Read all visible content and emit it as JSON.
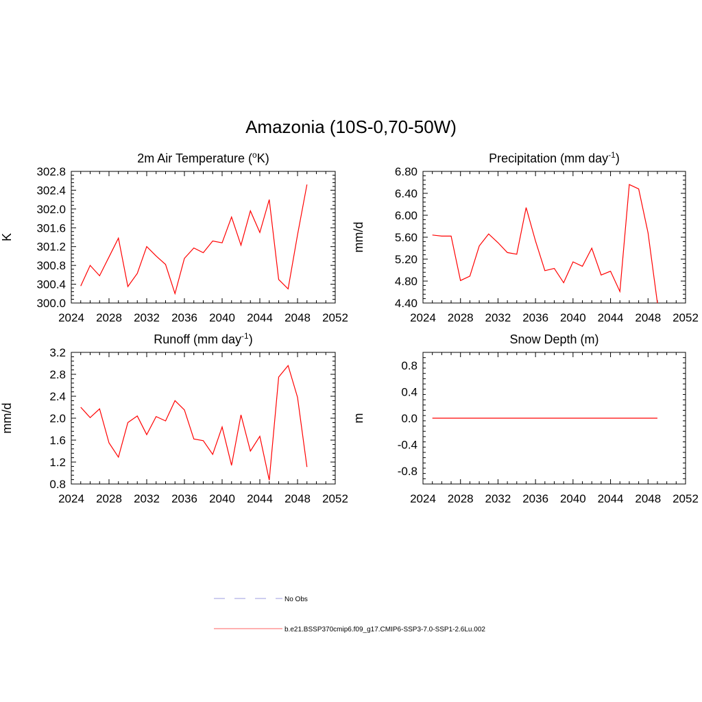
{
  "figure": {
    "title": "Amazonia (10S-0,70-50W)"
  },
  "legend": [
    {
      "label": "No Obs",
      "color": "#b0b0e8",
      "style": "dashed"
    },
    {
      "label": "b.e21.BSSP370cmip6.f09_g17.CMIP6-SSP3-7.0-SSP1-2.6Lu.002",
      "color": "#ff8080",
      "style": "solid"
    }
  ],
  "chart_data": [
    {
      "type": "line",
      "title": "2m Air Temperature (",
      "title_sup": "o",
      "title_after": "K)",
      "ylabel": "K",
      "xlim": [
        2024,
        2052
      ],
      "ylim": [
        300.0,
        302.8
      ],
      "xticks": [
        "2024",
        "2028",
        "2032",
        "2036",
        "2040",
        "2044",
        "2048",
        "2052"
      ],
      "yticks": [
        "300.0",
        "300.4",
        "300.8",
        "301.2",
        "301.6",
        "302.0",
        "302.4",
        "302.8"
      ],
      "line_color": "#ff0000",
      "x": [
        2025,
        2026,
        2027,
        2028,
        2029,
        2030,
        2031,
        2032,
        2033,
        2034,
        2035,
        2036,
        2037,
        2038,
        2039,
        2040,
        2041,
        2042,
        2043,
        2044,
        2045,
        2046,
        2047,
        2048,
        2049
      ],
      "y": [
        300.36,
        300.8,
        300.58,
        300.98,
        301.38,
        300.35,
        300.63,
        301.2,
        301.0,
        300.82,
        300.2,
        300.95,
        301.17,
        301.07,
        301.32,
        301.28,
        301.83,
        301.23,
        301.96,
        301.5,
        302.2,
        300.5,
        300.3,
        301.45,
        302.52
      ]
    },
    {
      "type": "line",
      "title": "Precipitation (mm day",
      "title_sup": "-1",
      "title_after": ")",
      "ylabel": "mm/d",
      "xlim": [
        2024,
        2052
      ],
      "ylim": [
        4.4,
        6.8
      ],
      "xticks": [
        "2024",
        "2028",
        "2032",
        "2036",
        "2040",
        "2044",
        "2048",
        "2052"
      ],
      "yticks": [
        "4.40",
        "4.80",
        "5.20",
        "5.60",
        "6.00",
        "6.40",
        "6.80"
      ],
      "line_color": "#ff0000",
      "x": [
        2025,
        2026,
        2027,
        2028,
        2029,
        2030,
        2031,
        2032,
        2033,
        2034,
        2035,
        2036,
        2037,
        2038,
        2039,
        2040,
        2041,
        2042,
        2043,
        2044,
        2045,
        2046,
        2047,
        2048,
        2049
      ],
      "y": [
        5.64,
        5.62,
        5.62,
        4.81,
        4.89,
        5.44,
        5.66,
        5.5,
        5.32,
        5.29,
        6.14,
        5.53,
        4.99,
        5.03,
        4.77,
        5.15,
        5.07,
        5.4,
        4.91,
        4.98,
        4.61,
        6.56,
        6.48,
        5.68,
        4.4
      ]
    },
    {
      "type": "line",
      "title": "Runoff (mm day",
      "title_sup": "-1",
      "title_after": ")",
      "ylabel": "mm/d",
      "xlim": [
        2024,
        2052
      ],
      "ylim": [
        0.8,
        3.2
      ],
      "xticks": [
        "2024",
        "2028",
        "2032",
        "2036",
        "2040",
        "2044",
        "2048",
        "2052"
      ],
      "yticks": [
        "0.8",
        "1.2",
        "1.6",
        "2.0",
        "2.4",
        "2.8",
        "3.2"
      ],
      "line_color": "#ff0000",
      "x": [
        2025,
        2026,
        2027,
        2028,
        2029,
        2030,
        2031,
        2032,
        2033,
        2034,
        2035,
        2036,
        2037,
        2038,
        2039,
        2040,
        2041,
        2042,
        2043,
        2044,
        2045,
        2046,
        2047,
        2048,
        2049
      ],
      "y": [
        2.2,
        2.01,
        2.17,
        1.55,
        1.29,
        1.92,
        2.04,
        1.7,
        2.03,
        1.95,
        2.32,
        2.15,
        1.62,
        1.59,
        1.34,
        1.84,
        1.14,
        2.06,
        1.4,
        1.67,
        0.87,
        2.75,
        2.96,
        2.38,
        1.11
      ]
    },
    {
      "type": "line",
      "title": "Snow Depth (m)",
      "title_sup": "",
      "title_after": "",
      "ylabel": "m",
      "xlim": [
        2024,
        2052
      ],
      "ylim": [
        -1.0,
        1.0
      ],
      "xticks": [
        "2024",
        "2028",
        "2032",
        "2036",
        "2040",
        "2044",
        "2048",
        "2052"
      ],
      "yticks": [
        "-0.8",
        "-0.4",
        "0.0",
        "0.4",
        "0.8"
      ],
      "line_color": "#ff0000",
      "x": [
        2025,
        2026,
        2027,
        2028,
        2029,
        2030,
        2031,
        2032,
        2033,
        2034,
        2035,
        2036,
        2037,
        2038,
        2039,
        2040,
        2041,
        2042,
        2043,
        2044,
        2045,
        2046,
        2047,
        2048,
        2049
      ],
      "y": [
        0,
        0,
        0,
        0,
        0,
        0,
        0,
        0,
        0,
        0,
        0,
        0,
        0,
        0,
        0,
        0,
        0,
        0,
        0,
        0,
        0,
        0,
        0,
        0,
        0
      ]
    }
  ]
}
